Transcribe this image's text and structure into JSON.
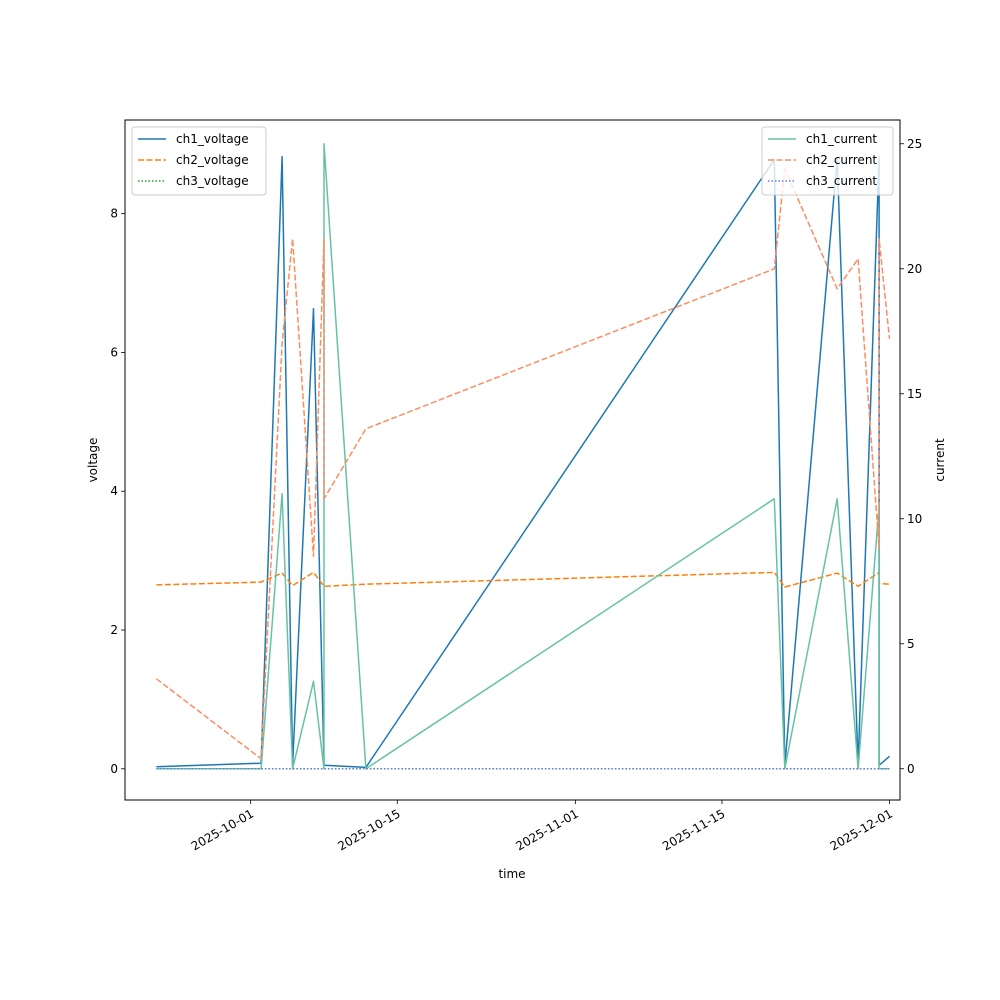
{
  "chart_data": {
    "type": "line",
    "title": "",
    "xlabel": "time",
    "ylabel_left": "voltage",
    "ylabel_right": "current",
    "x_ticks": [
      "2025-10-01",
      "2025-10-15",
      "2025-11-01",
      "2025-11-15",
      "2025-12-01"
    ],
    "y_left_ticks": [
      0,
      2,
      4,
      6,
      8
    ],
    "y_right_ticks": [
      0,
      5,
      10,
      15,
      20,
      25
    ],
    "x_range": [
      "2025-09-19",
      "2025-12-02"
    ],
    "y_left_range": [
      -0.45,
      9.35
    ],
    "y_right_range": [
      -1.25,
      25.95
    ],
    "grid": false,
    "legend_left": {
      "placement": "top-left",
      "entries": [
        "ch1_voltage",
        "ch2_voltage",
        "ch3_voltage"
      ]
    },
    "legend_right": {
      "placement": "top-right",
      "entries": [
        "ch1_current",
        "ch2_current",
        "ch3_current"
      ]
    },
    "colors": {
      "ch1_voltage": "#1f77b4",
      "ch2_voltage": "#ff7f0e",
      "ch3_voltage": "#2ca02c",
      "ch1_current": "#66c2a5",
      "ch2_current": "#fc8d62",
      "ch3_current": "#5f7fd6"
    },
    "series": [
      {
        "name": "ch1_voltage",
        "axis": "left",
        "style": "solid",
        "x": [
          "2025-09-22",
          "2025-10-02",
          "2025-10-04",
          "2025-10-05",
          "2025-10-07",
          "2025-10-08",
          "2025-10-12",
          "2025-11-20",
          "2025-11-21",
          "2025-11-26",
          "2025-11-28",
          "2025-11-30",
          "2025-11-30",
          "2025-12-01"
        ],
        "y": [
          0.03,
          0.08,
          8.82,
          0.05,
          6.63,
          0.05,
          0.02,
          8.78,
          0.05,
          8.8,
          0.05,
          8.82,
          0.05,
          0.18
        ]
      },
      {
        "name": "ch2_voltage",
        "axis": "left",
        "style": "dashed",
        "x": [
          "2025-09-22",
          "2025-10-02",
          "2025-10-04",
          "2025-10-05",
          "2025-10-07",
          "2025-10-08",
          "2025-10-12",
          "2025-11-20",
          "2025-11-21",
          "2025-11-26",
          "2025-11-28",
          "2025-11-30",
          "2025-11-30",
          "2025-12-01"
        ],
        "y": [
          2.65,
          2.69,
          2.82,
          2.64,
          2.83,
          2.63,
          2.66,
          2.83,
          2.62,
          2.82,
          2.63,
          2.83,
          2.67,
          2.66
        ]
      },
      {
        "name": "ch3_voltage",
        "axis": "left",
        "style": "dotted",
        "x": [
          "2025-09-22",
          "2025-12-01"
        ],
        "y": [
          0,
          0
        ]
      },
      {
        "name": "ch1_current",
        "axis": "right",
        "style": "solid",
        "x": [
          "2025-09-22",
          "2025-10-02",
          "2025-10-04",
          "2025-10-05",
          "2025-10-07",
          "2025-10-08",
          "2025-10-08",
          "2025-10-12",
          "2025-11-20",
          "2025-11-21",
          "2025-11-26",
          "2025-11-28",
          "2025-11-30",
          "2025-11-30",
          "2025-12-01"
        ],
        "y": [
          0,
          0,
          11.0,
          0,
          3.5,
          0,
          25.0,
          0,
          10.8,
          0,
          10.8,
          0,
          10.5,
          0,
          0
        ]
      },
      {
        "name": "ch2_current",
        "axis": "right",
        "style": "dashed",
        "x": [
          "2025-09-22",
          "2025-10-02",
          "2025-10-04",
          "2025-10-05",
          "2025-10-07",
          "2025-10-08",
          "2025-10-08",
          "2025-10-12",
          "2025-11-20",
          "2025-11-21",
          "2025-11-26",
          "2025-11-28",
          "2025-11-30",
          "2025-11-30",
          "2025-12-01"
        ],
        "y": [
          3.6,
          0.4,
          17.0,
          21.2,
          8.5,
          21.2,
          10.8,
          13.6,
          20.0,
          24.0,
          19.2,
          20.4,
          8.8,
          21.2,
          17.2
        ]
      },
      {
        "name": "ch3_current",
        "axis": "right",
        "style": "dotted",
        "x": [
          "2025-09-22",
          "2025-12-01"
        ],
        "y": [
          0,
          0
        ]
      }
    ]
  }
}
